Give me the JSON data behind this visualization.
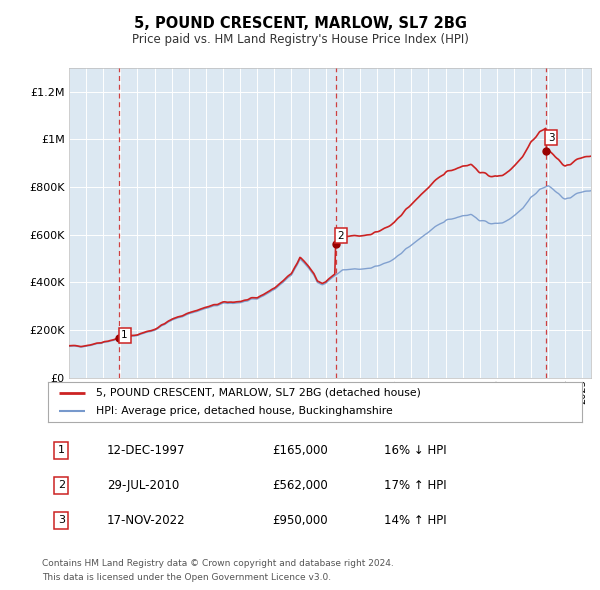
{
  "title": "5, POUND CRESCENT, MARLOW, SL7 2BG",
  "subtitle": "Price paid vs. HM Land Registry's House Price Index (HPI)",
  "xlim_start": 1995.0,
  "xlim_end": 2025.5,
  "ylim_min": 0,
  "ylim_max": 1300000,
  "yticks": [
    0,
    200000,
    400000,
    600000,
    800000,
    1000000,
    1200000
  ],
  "ytick_labels": [
    "£0",
    "£200K",
    "£400K",
    "£600K",
    "£800K",
    "£1M",
    "£1.2M"
  ],
  "purchases": [
    {
      "date_num": 1997.95,
      "price": 165000,
      "label": "1"
    },
    {
      "date_num": 2010.58,
      "price": 562000,
      "label": "2"
    },
    {
      "date_num": 2022.88,
      "price": 950000,
      "label": "3"
    }
  ],
  "legend_line1": "5, POUND CRESCENT, MARLOW, SL7 2BG (detached house)",
  "legend_line2": "HPI: Average price, detached house, Buckinghamshire",
  "legend_color1": "#cc2222",
  "legend_color2": "#7799cc",
  "table_rows": [
    {
      "num": "1",
      "date": "12-DEC-1997",
      "price": "£165,000",
      "hpi": "16% ↓ HPI"
    },
    {
      "num": "2",
      "date": "29-JUL-2010",
      "price": "£562,000",
      "hpi": "17% ↑ HPI"
    },
    {
      "num": "3",
      "date": "17-NOV-2022",
      "price": "£950,000",
      "hpi": "14% ↑ HPI"
    }
  ],
  "footnote1": "Contains HM Land Registry data © Crown copyright and database right 2024.",
  "footnote2": "This data is licensed under the Open Government Licence v3.0.",
  "bg_color": "#dce8f2",
  "purchase_line_color": "#cc2222",
  "hpi_line_color": "#7799cc",
  "vline_color": "#cc2222"
}
